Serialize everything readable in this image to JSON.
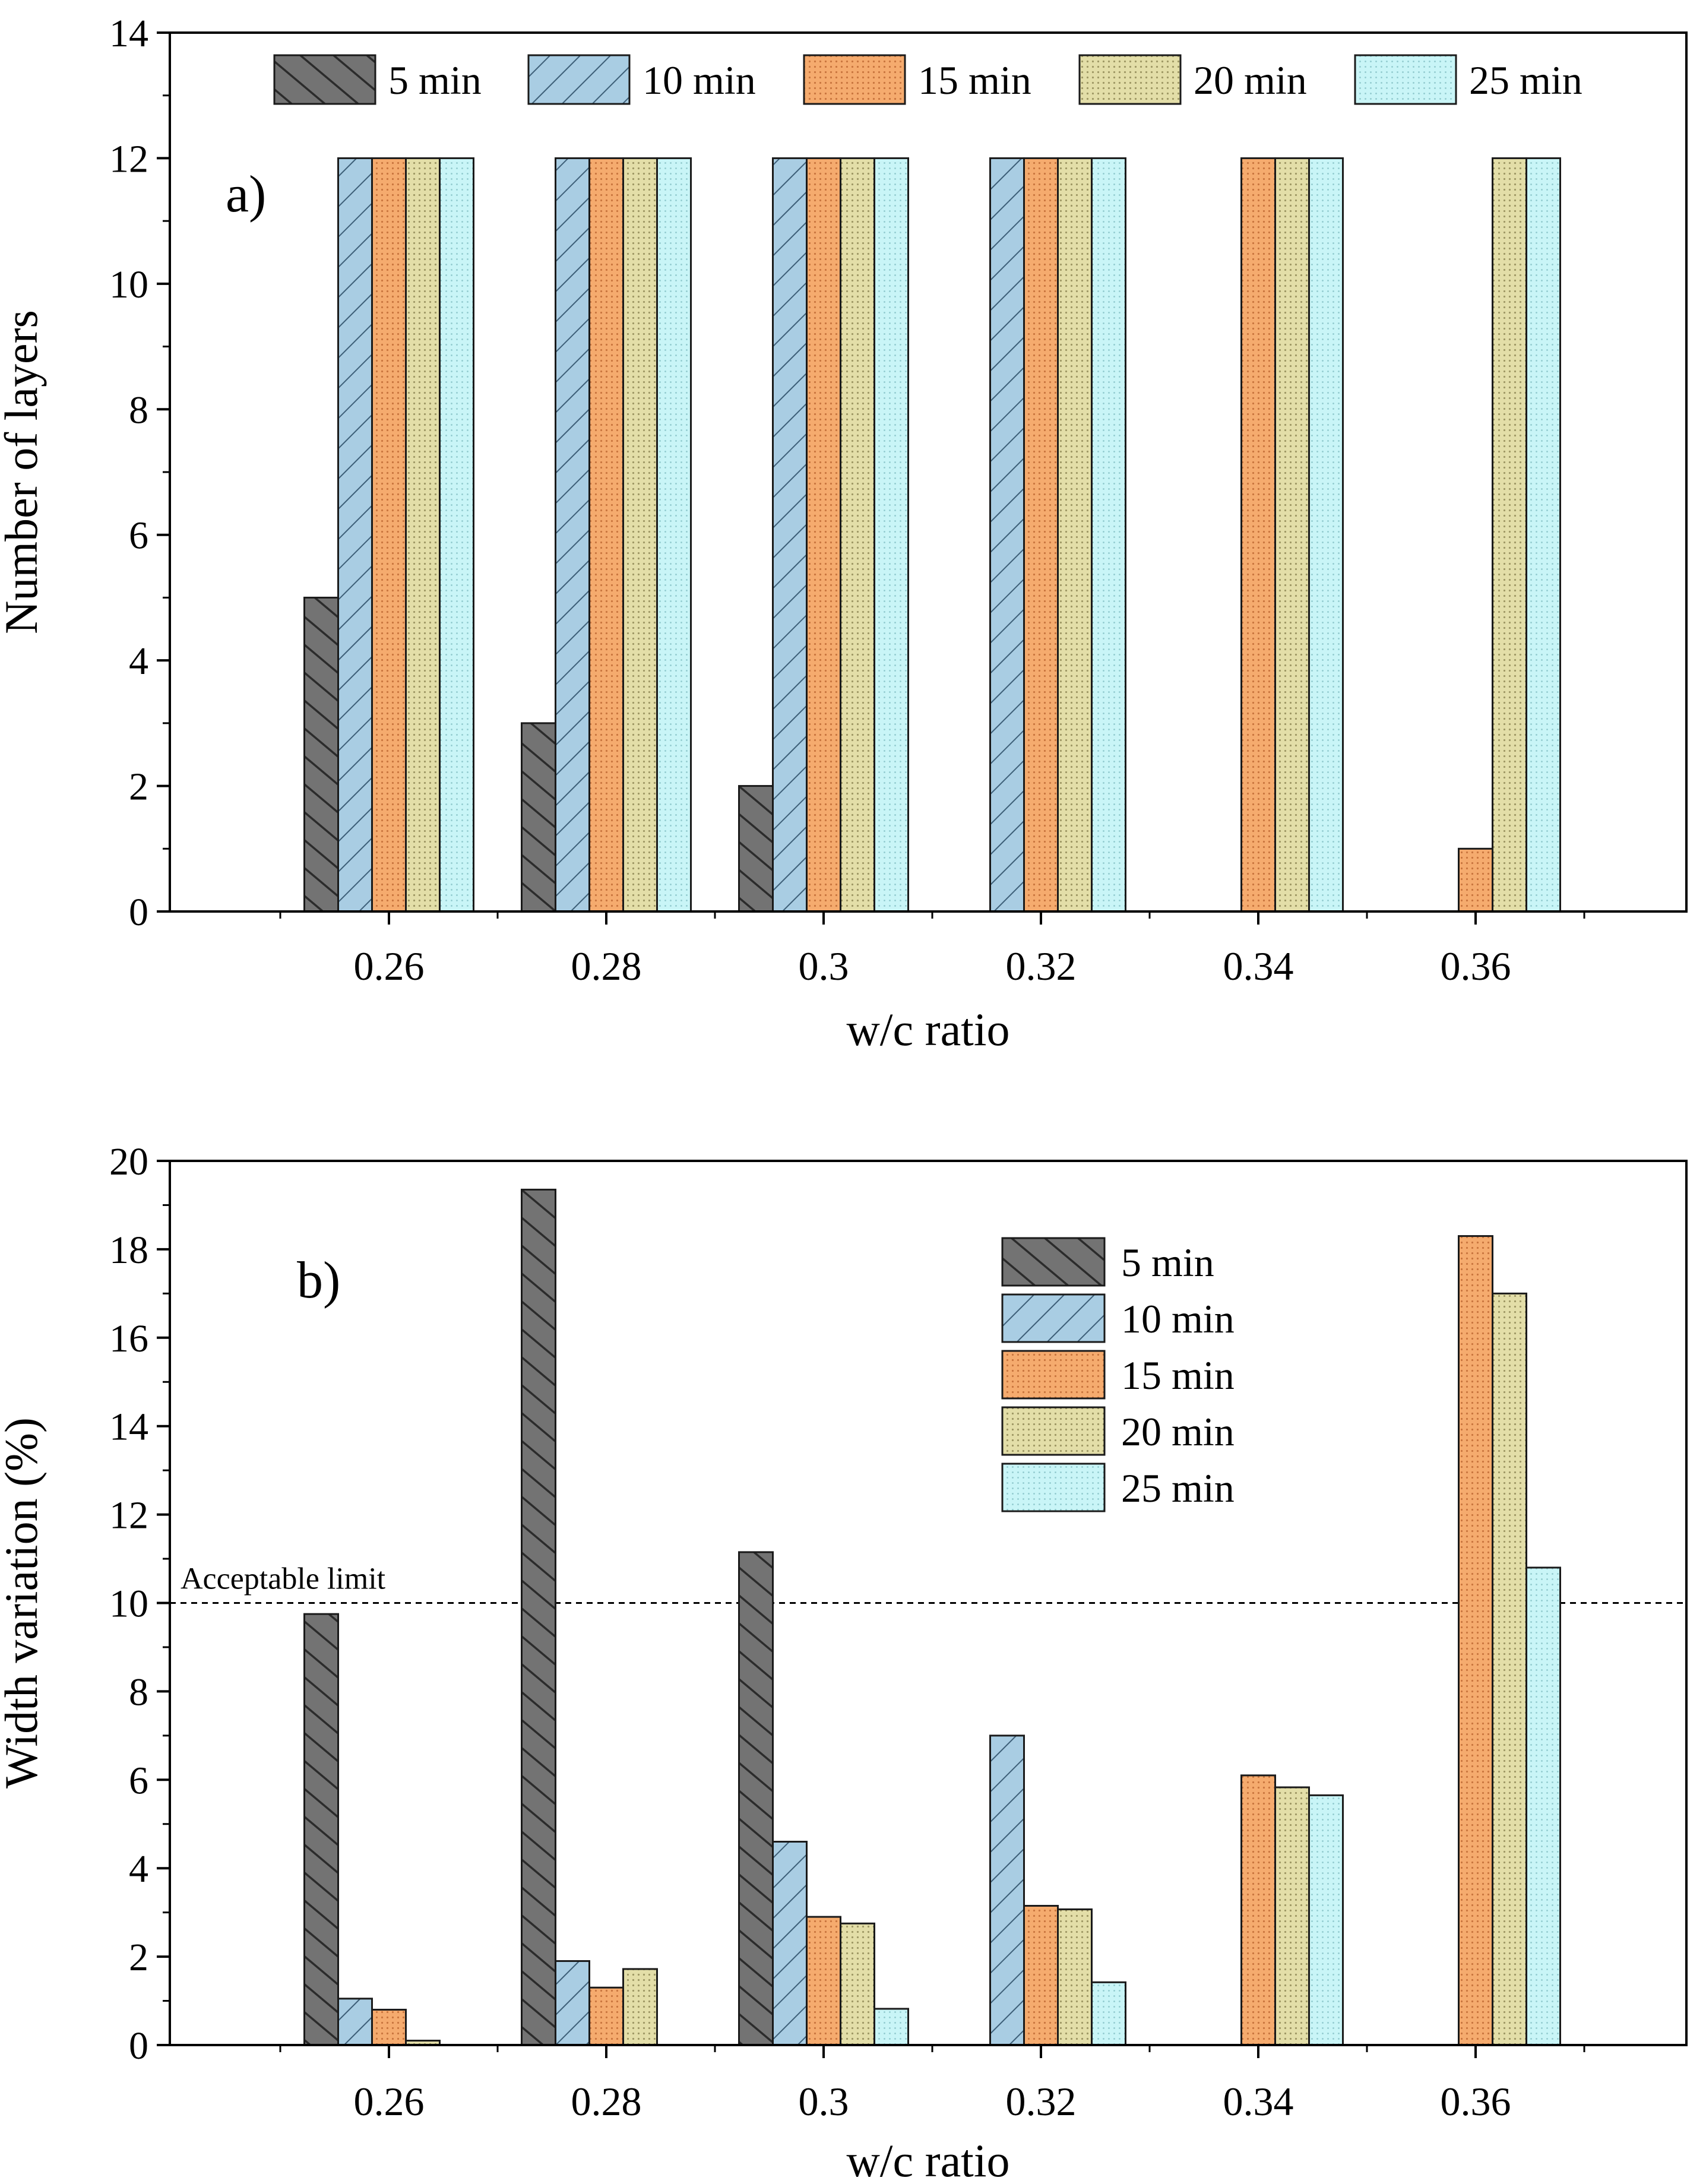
{
  "chart_data": [
    {
      "id": "a",
      "type": "bar",
      "panel_label": "a)",
      "xlabel": "w/c ratio",
      "ylabel": "Number of layers",
      "categories": [
        "0.26",
        "0.28",
        "0.3",
        "0.32",
        "0.34",
        "0.36"
      ],
      "ylim": [
        0,
        14
      ],
      "yticks": [
        "0",
        "2",
        "4",
        "6",
        "8",
        "10",
        "12",
        "14"
      ],
      "legend": "top, horizontal",
      "series": [
        {
          "name": "5 min",
          "values": [
            5,
            3,
            2,
            0,
            0,
            0
          ]
        },
        {
          "name": "10 min",
          "values": [
            12,
            12,
            12,
            12,
            0,
            0
          ]
        },
        {
          "name": "15 min",
          "values": [
            12,
            12,
            12,
            12,
            12,
            1
          ]
        },
        {
          "name": "20 min",
          "values": [
            12,
            12,
            12,
            12,
            12,
            12
          ]
        },
        {
          "name": "25 min",
          "values": [
            12,
            12,
            12,
            12,
            12,
            12
          ]
        }
      ]
    },
    {
      "id": "b",
      "type": "bar",
      "panel_label": "b)",
      "xlabel": "w/c ratio",
      "ylabel": "Width variation (%)",
      "categories": [
        "0.26",
        "0.28",
        "0.3",
        "0.32",
        "0.34",
        "0.36"
      ],
      "ylim": [
        0,
        20
      ],
      "yticks": [
        "0",
        "2",
        "4",
        "6",
        "8",
        "10",
        "12",
        "14",
        "16",
        "18",
        "20"
      ],
      "legend": "upper-right, vertical",
      "reference_line": {
        "y": 10,
        "label": "Acceptable limit",
        "style": "dashed"
      },
      "series": [
        {
          "name": "5 min",
          "values": [
            9.75,
            19.35,
            11.15,
            0,
            0,
            0
          ]
        },
        {
          "name": "10 min",
          "values": [
            1.05,
            1.9,
            4.6,
            7.0,
            0,
            0
          ]
        },
        {
          "name": "15 min",
          "values": [
            0.8,
            1.3,
            2.9,
            3.15,
            6.1,
            18.3
          ]
        },
        {
          "name": "20 min",
          "values": [
            0.1,
            1.72,
            2.75,
            3.07,
            5.83,
            17.0
          ]
        },
        {
          "name": "25 min",
          "values": [
            0,
            0,
            0.82,
            1.42,
            5.65,
            10.8
          ]
        }
      ]
    }
  ],
  "styles": {
    "series_colors": [
      "#707070",
      "#a9cde3",
      "#f5ab6e",
      "#e0dba3",
      "#c6f4f6"
    ],
    "hatch_colors": [
      "#2b2b2b",
      "#3d5f78",
      "#c9753e",
      "#9e9764",
      "#8fc9cd"
    ]
  }
}
